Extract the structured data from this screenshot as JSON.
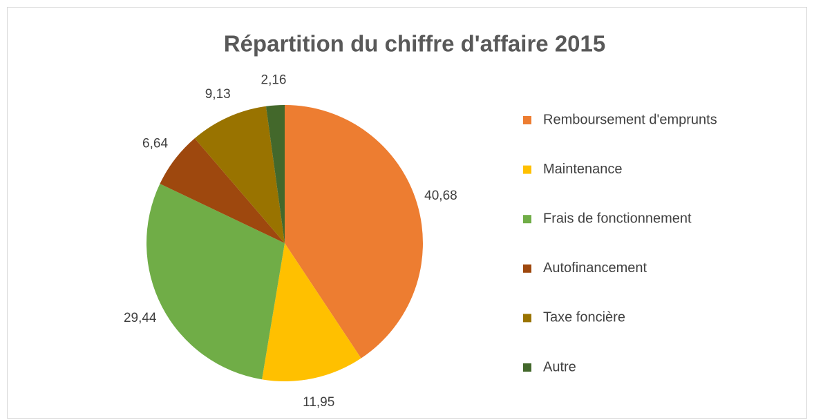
{
  "chart_data": {
    "type": "pie",
    "title": "Répartition du chiffre d'affaire 2015",
    "categories": [
      "Remboursement d'emprunts",
      "Maintenance",
      "Frais de fonctionnement",
      "Autofinancement",
      "Taxe foncière",
      "Autre"
    ],
    "values": [
      40.68,
      11.95,
      29.44,
      6.64,
      9.13,
      2.16
    ],
    "value_labels": [
      "40,68",
      "11,95",
      "29,44",
      "6,64",
      "9,13",
      "2,16"
    ],
    "colors": [
      "#ed7d31",
      "#ffc000",
      "#70ad47",
      "#9e480e",
      "#997300",
      "#43682b"
    ],
    "legend": "right"
  }
}
